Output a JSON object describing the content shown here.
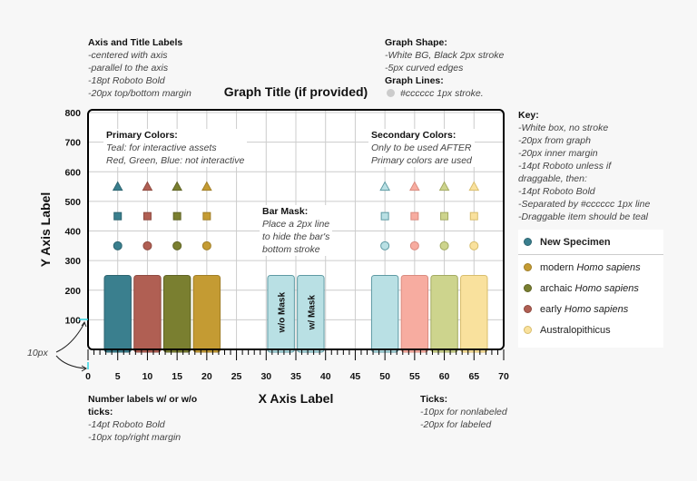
{
  "notes": {
    "axis_title": {
      "heading": "Axis and Title Labels",
      "lines": [
        "-centered with axis",
        "-parallel to the axis",
        "-18pt Roboto Bold",
        "-20px top/bottom margin"
      ]
    },
    "graph_shape": {
      "heading": "Graph Shape:",
      "lines": [
        "-White BG, Black 2px stroke",
        "-5px curved edges"
      ],
      "heading2": "Graph Lines:",
      "line2": "#cccccc 1px stroke."
    },
    "primary": {
      "heading": "Primary Colors:",
      "lines": [
        "Teal: for interactive assets",
        "Red, Green, Blue: not interactive"
      ]
    },
    "secondary": {
      "heading": "Secondary Colors:",
      "lines": [
        "Only to be used AFTER",
        "Primary colors are used"
      ]
    },
    "bar_mask": {
      "heading": "Bar Mask:",
      "lines": [
        "Place a 2px line",
        "to hide the bar's",
        "bottom stroke"
      ]
    },
    "key": {
      "heading": "Key:",
      "lines": [
        "-White box, no stroke",
        "-20px from graph",
        "-20px inner margin",
        "-14pt Roboto unless if",
        "draggable, then:",
        "-14pt Roboto Bold",
        "-Separated by #cccccc 1px line",
        "-Draggable item should be teal"
      ]
    },
    "number_labels": {
      "heading": "Number labels w/ or w/o",
      "heading_cont": "ticks:",
      "lines": [
        "-14pt Roboto Bold",
        "-10px top/right margin"
      ]
    },
    "ticks": {
      "heading": "Ticks:",
      "lines": [
        "-10px for nonlabeled",
        "-20px for labeled"
      ]
    },
    "margin_label": "10px"
  },
  "legend": {
    "items": [
      {
        "label": "New Specimen",
        "color": "#3a7f8e",
        "draggable": true
      },
      {
        "label": "modern ",
        "italic": "Homo sapiens",
        "color": "#c49b33"
      },
      {
        "label": "archaic ",
        "italic": "Homo sapiens",
        "color": "#7a7f30"
      },
      {
        "label": "early ",
        "italic": "Homo sapiens",
        "color": "#b05f53"
      },
      {
        "label": "Australopithicus",
        "italic": "",
        "color": "#f9e19d"
      }
    ]
  },
  "chart_data": {
    "type": "bar",
    "title": "Graph Title (if provided)",
    "xlabel": "X Axis Label",
    "ylabel": "Y Axis Label",
    "xlim": [
      0,
      70
    ],
    "ylim": [
      0,
      800
    ],
    "xticks": [
      0,
      5,
      10,
      15,
      20,
      25,
      30,
      35,
      40,
      45,
      50,
      55,
      60,
      65,
      70
    ],
    "yticks": [
      100,
      200,
      300,
      400,
      500,
      600,
      700,
      800
    ],
    "grid": true,
    "grid_color": "#cccccc",
    "bars": [
      {
        "x": 5,
        "value": 250,
        "fill": "#3a7f8e",
        "stroke": "#2d6470"
      },
      {
        "x": 10,
        "value": 250,
        "fill": "#b05f53",
        "stroke": "#8e4a40"
      },
      {
        "x": 15,
        "value": 250,
        "fill": "#7a7f30",
        "stroke": "#5f6325"
      },
      {
        "x": 20,
        "value": 250,
        "fill": "#c49b33",
        "stroke": "#a07e27"
      },
      {
        "x": 32.5,
        "value": 250,
        "fill": "#b9e0e4",
        "stroke": "#5e9aa3",
        "label": "w/o Mask"
      },
      {
        "x": 37.5,
        "value": 250,
        "fill": "#b9e0e4",
        "stroke": "#5e9aa3",
        "label": "w/ Mask"
      },
      {
        "x": 50,
        "value": 250,
        "fill": "#b9e0e4",
        "stroke": "#5e9aa3"
      },
      {
        "x": 55,
        "value": 250,
        "fill": "#f7aca0",
        "stroke": "#d98b7f"
      },
      {
        "x": 60,
        "value": 250,
        "fill": "#cdd48d",
        "stroke": "#a3aa62"
      },
      {
        "x": 65,
        "value": 250,
        "fill": "#f9e19d",
        "stroke": "#d8bd6c"
      }
    ],
    "markers": {
      "x": [
        5,
        10,
        15,
        20,
        50,
        55,
        60,
        65
      ],
      "colors": [
        "#3a7f8e",
        "#b05f53",
        "#7a7f30",
        "#c49b33",
        "#b9e0e4",
        "#f7aca0",
        "#cdd48d",
        "#f9e19d"
      ],
      "strokes": [
        "#2d6470",
        "#8e4a40",
        "#5f6325",
        "#a07e27",
        "#5e9aa3",
        "#d98b7f",
        "#a3aa62",
        "#d8bd6c"
      ],
      "rows": [
        {
          "shape": "triangle",
          "y": 550
        },
        {
          "shape": "square",
          "y": 450
        },
        {
          "shape": "circle",
          "y": 350
        }
      ]
    }
  }
}
